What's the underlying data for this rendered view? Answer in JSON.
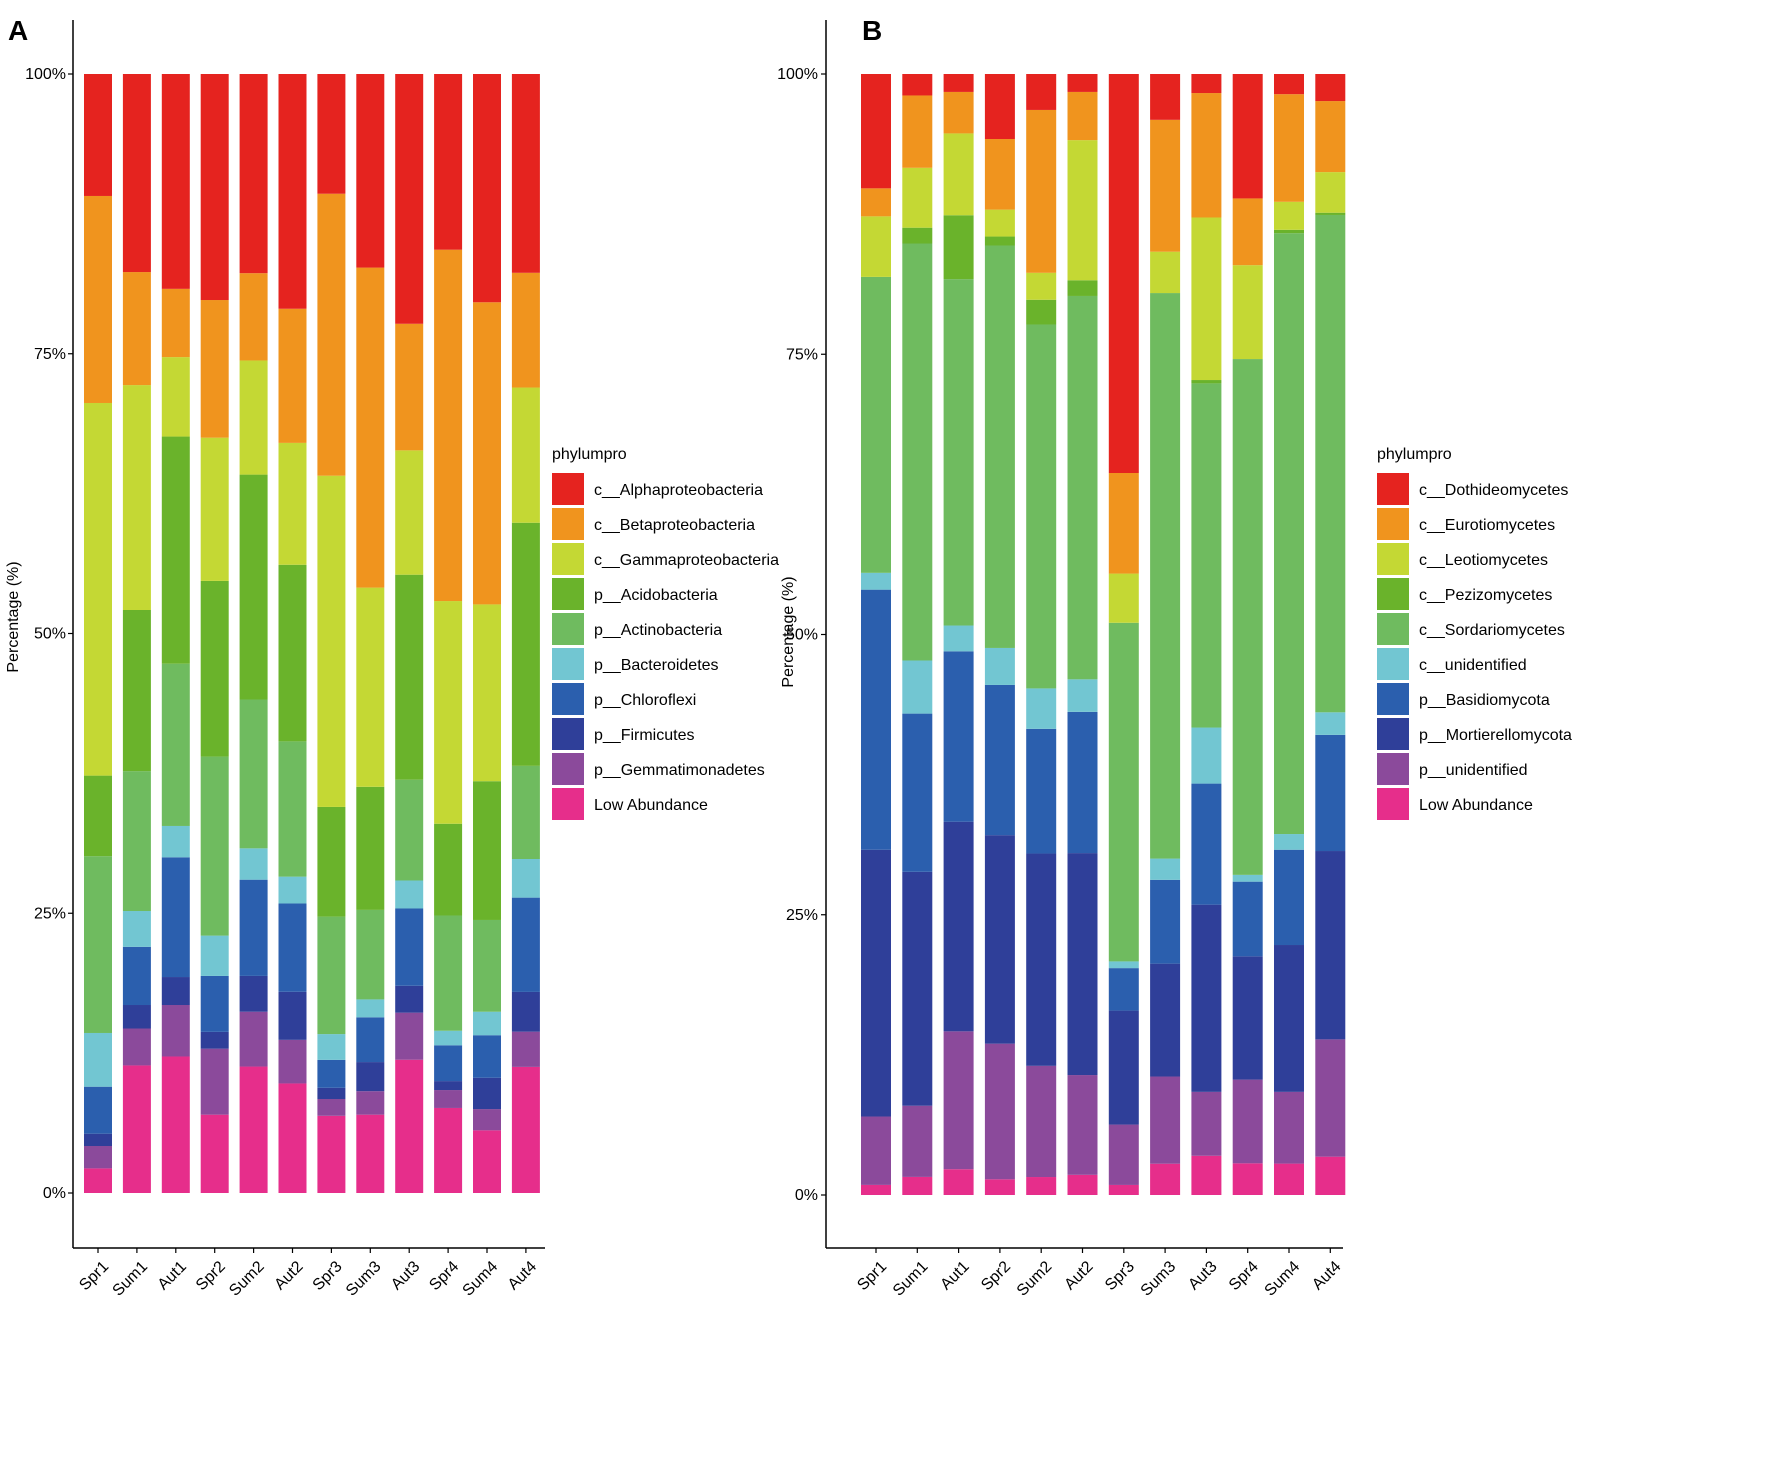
{
  "chart_data": [
    {
      "type": "bar",
      "stacked": true,
      "panel": "A",
      "ylabel": "Percentage (%)",
      "ylim": [
        0,
        100
      ],
      "y_ticks": [
        "0%",
        "25%",
        "50%",
        "75%",
        "100%"
      ],
      "legend_title": "phylumpro",
      "legend_position": "right",
      "categories": [
        "Spr1",
        "Sum1",
        "Aut1",
        "Spr2",
        "Sum2",
        "Aut2",
        "Spr3",
        "Sum3",
        "Aut3",
        "Spr4",
        "Sum4",
        "Aut4"
      ],
      "series": [
        {
          "name": "Low Abundance",
          "color": "#e62e8b",
          "values": [
            2.2,
            11.4,
            12.2,
            7.0,
            11.3,
            9.8,
            6.9,
            7.0,
            11.9,
            7.6,
            5.6,
            11.1
          ]
        },
        {
          "name": "p__Gemmatimonadetes",
          "color": "#8b4a9b",
          "values": [
            2.0,
            3.3,
            4.6,
            5.9,
            4.9,
            3.9,
            1.5,
            2.1,
            4.2,
            1.6,
            1.9,
            3.1
          ]
        },
        {
          "name": "p__Firmicutes",
          "color": "#2f3f99",
          "values": [
            1.1,
            2.1,
            2.5,
            1.5,
            3.2,
            4.3,
            1.0,
            2.6,
            2.4,
            0.8,
            2.8,
            3.5
          ]
        },
        {
          "name": "p__Chloroflexi",
          "color": "#2b5fae",
          "values": [
            4.2,
            5.2,
            10.7,
            5.0,
            8.6,
            7.9,
            2.5,
            4.0,
            6.9,
            3.2,
            3.8,
            8.3
          ]
        },
        {
          "name": "p__Bacteroidetes",
          "color": "#72c6d2",
          "values": [
            4.8,
            3.2,
            2.8,
            3.6,
            2.8,
            2.4,
            2.3,
            1.6,
            2.5,
            1.3,
            2.1,
            3.4
          ]
        },
        {
          "name": "p__Actinobacteria",
          "color": "#6fbb5f",
          "values": [
            15.8,
            12.5,
            14.5,
            16.0,
            13.3,
            12.1,
            10.5,
            8.0,
            9.0,
            10.3,
            8.2,
            8.2
          ]
        },
        {
          "name": "p__Acidobacteria",
          "color": "#6ab32b",
          "values": [
            7.2,
            14.4,
            20.3,
            15.7,
            20.1,
            15.8,
            9.8,
            11.0,
            18.3,
            8.2,
            12.4,
            21.4
          ]
        },
        {
          "name": "c__Gammaproteobacteria",
          "color": "#c4d834",
          "values": [
            33.3,
            20.1,
            7.1,
            12.8,
            10.2,
            10.9,
            29.6,
            17.8,
            11.1,
            19.9,
            15.8,
            11.9
          ]
        },
        {
          "name": "c__Betaproteobacteria",
          "color": "#f0941e",
          "values": [
            18.5,
            10.1,
            6.1,
            12.3,
            7.8,
            12.0,
            25.2,
            28.6,
            11.3,
            31.4,
            27.0,
            10.1
          ]
        },
        {
          "name": "c__Alphaproteobacteria",
          "color": "#e5231f",
          "values": [
            10.9,
            17.7,
            19.2,
            20.2,
            17.8,
            21.0,
            10.7,
            17.3,
            22.3,
            15.7,
            20.4,
            17.5
          ]
        }
      ]
    },
    {
      "type": "bar",
      "stacked": true,
      "panel": "B",
      "ylabel": "Percentage (%)",
      "ylim": [
        0,
        100
      ],
      "y_ticks": [
        "0%",
        "25%",
        "50%",
        "75%",
        "100%"
      ],
      "legend_title": "phylumpro",
      "legend_position": "right",
      "categories": [
        "Spr1",
        "Sum1",
        "Aut1",
        "Spr2",
        "Sum2",
        "Aut2",
        "Spr3",
        "Sum3",
        "Aut3",
        "Spr4",
        "Sum4",
        "Aut4"
      ],
      "series": [
        {
          "name": "Low Abundance",
          "color": "#e62e8b",
          "values": [
            0.9,
            1.6,
            2.3,
            1.4,
            1.6,
            1.8,
            0.9,
            2.8,
            3.5,
            2.8,
            2.8,
            3.4
          ]
        },
        {
          "name": "p__unidentified",
          "color": "#8b4a9b",
          "values": [
            6.1,
            6.3,
            12.3,
            12.1,
            9.9,
            8.9,
            5.4,
            7.8,
            5.7,
            7.4,
            6.4,
            10.4
          ]
        },
        {
          "name": "p__Mortierellomycota",
          "color": "#2f3f99",
          "values": [
            23.8,
            20.7,
            18.7,
            18.6,
            18.9,
            19.8,
            10.2,
            10.1,
            16.7,
            10.9,
            13.1,
            16.7
          ]
        },
        {
          "name": "p__Basidiomycota",
          "color": "#2b5fae",
          "values": [
            23.2,
            14.0,
            15.2,
            13.4,
            11.1,
            12.6,
            3.8,
            7.5,
            10.8,
            6.6,
            8.5,
            10.3
          ]
        },
        {
          "name": "c__unidentified",
          "color": "#72c6d2",
          "values": [
            1.5,
            4.7,
            2.3,
            3.3,
            3.6,
            2.9,
            0.6,
            1.9,
            5.0,
            0.6,
            1.4,
            2.0
          ]
        },
        {
          "name": "c__Sordariomycetes",
          "color": "#6fbb5f",
          "values": [
            26.4,
            36.9,
            30.9,
            35.9,
            32.4,
            34.2,
            30.3,
            50.6,
            30.7,
            45.6,
            53.6,
            44.1
          ]
        },
        {
          "name": "c__Pezizomycetes",
          "color": "#6ab32b",
          "values": [
            0.0,
            1.4,
            5.7,
            0.8,
            2.2,
            1.4,
            0.0,
            0.0,
            0.3,
            0.0,
            0.3,
            0.2
          ]
        },
        {
          "name": "c__Leotiomycetes",
          "color": "#c4d834",
          "values": [
            5.4,
            5.3,
            7.3,
            2.4,
            2.4,
            12.5,
            4.4,
            3.7,
            14.5,
            8.3,
            2.5,
            3.6
          ]
        },
        {
          "name": "c__Eurotiomycetes",
          "color": "#f0941e",
          "values": [
            2.5,
            6.4,
            3.7,
            6.3,
            14.5,
            4.3,
            9.0,
            11.8,
            11.1,
            5.9,
            9.6,
            6.3
          ]
        },
        {
          "name": "c__Dothideomycetes",
          "color": "#e5231f",
          "values": [
            10.2,
            1.9,
            1.6,
            5.8,
            3.2,
            1.6,
            35.7,
            4.1,
            1.7,
            11.0,
            1.8,
            2.4
          ]
        }
      ]
    }
  ]
}
